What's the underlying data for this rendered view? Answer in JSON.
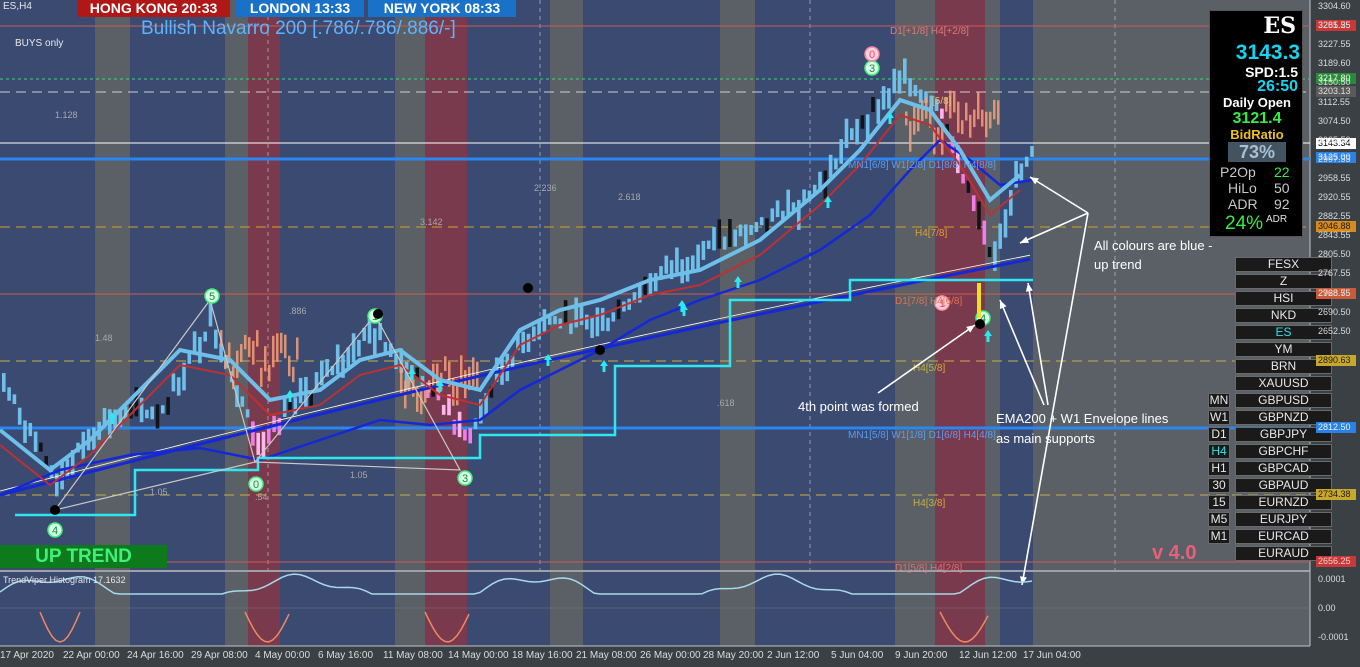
{
  "header": {
    "symbol": "ES,H4",
    "indicator_title": "Bullish Navarro 200 [.786/.786/.886/-]",
    "mode": "BUYS only"
  },
  "sessions": [
    {
      "label": "HONG KONG  20:33",
      "color": "#b01818"
    },
    {
      "label": "LONDON  13:33",
      "color": "#1a72c8"
    },
    {
      "label": "NEW YORK  08:33",
      "color": "#1a72c8"
    }
  ],
  "panel": {
    "symbol": "ES",
    "price": "3143.3",
    "spread": "SPD:1.5",
    "timer": "26:50",
    "daily_open_label": "Daily Open",
    "daily_open": "3121.4",
    "bid_ratio_label": "BidRatio",
    "bid_ratio": "73%",
    "stats": [
      {
        "k": "P2Op",
        "v": "22",
        "color": "#33ee44"
      },
      {
        "k": "HiLo",
        "v": "50",
        "color": "#c8c8c8"
      },
      {
        "k": "ADR",
        "v": "92",
        "color": "#c8c8c8"
      }
    ],
    "adr_pct": "24%",
    "adr_suffix": "ADR"
  },
  "markets": [
    "FESX",
    "Z",
    "HSI",
    "NKD",
    "ES",
    "YM",
    "BRN",
    "XAUUSD",
    "GBPUSD",
    "GBPNZD",
    "GBPJPY",
    "GBPCHF",
    "GBPCAD",
    "GBPAUD",
    "EURNZD",
    "EURJPY",
    "EURCAD",
    "EURAUD"
  ],
  "active_market": "ES",
  "timeframes": [
    "MN",
    "W1",
    "D1",
    "H4",
    "H1",
    "30",
    "15",
    "M5",
    "M1"
  ],
  "active_timeframe": "H4",
  "price_axis": [
    "3304.60",
    "3265.55",
    "3227.55",
    "3189.60",
    "3150.50",
    "3112.55",
    "3074.50",
    "3035.50",
    "2997.55",
    "2958.55",
    "2920.55",
    "2882.55",
    "2843.55",
    "2805.50",
    "2767.55",
    "2728.55",
    "2690.50",
    "2652.50"
  ],
  "price_boxes": [
    {
      "label": "3281.25",
      "color": "#c83838",
      "text": "#f0d0d0"
    },
    {
      "label": "3217.80",
      "color": "#2a8a3a",
      "text": "#e0ffe0"
    },
    {
      "label": "3203.13",
      "color": "#5a5a5a",
      "text": "#e0e0e0"
    },
    {
      "label": "3143.34",
      "color": "#ffffff",
      "text": "#000000"
    },
    {
      "label": "3125.00",
      "color": "#2a82e8",
      "text": "#e8f4ff"
    },
    {
      "label": "3046.88",
      "color": "#d88a1a",
      "text": "#1a1a1a"
    },
    {
      "label": "2968.75",
      "color": "#c85a3a",
      "text": "#f0e0d0"
    },
    {
      "label": "2890.63",
      "color": "#c8a82a",
      "text": "#1a1a1a"
    },
    {
      "label": "2812.50",
      "color": "#2a82e8",
      "text": "#e8f4ff"
    },
    {
      "label": "2734.38",
      "color": "#c8a82a",
      "text": "#1a1a1a"
    },
    {
      "label": "2656.25",
      "color": "#c83838",
      "text": "#f0d0d0"
    }
  ],
  "time_axis": [
    "17 Apr 2020",
    "22 Apr 00:00",
    "24 Apr 16:00",
    "29 Apr 08:00",
    "4 May 00:00",
    "6 May 16:00",
    "11 May 08:00",
    "14 May 00:00",
    "18 May 16:00",
    "21 May 08:00",
    "26 May 00:00",
    "28 May 20:00",
    "2 Jun 12:00",
    "5 Jun 04:00",
    "9 Jun 20:00",
    "12 Jun 12:00",
    "17 Jun 04:00"
  ],
  "murrey_labels": [
    "D1[+1/8] H4[+2/8]",
    "MN1[6/8] W1[2/8] D1[8/8] H4[8/8]",
    "H4[7/8]",
    "D1[7/8] H4[6/8]",
    "H4[5/8]",
    "MN1[5/8] W1[1/8] D1[6/8] H4[4/8]",
    "H4[3/8]",
    "D1[5/8] H4[2/8]",
    "[5/8]"
  ],
  "fib_labels": [
    "1.128",
    "1.48",
    ".886",
    "2.236",
    "3.142",
    "2.618",
    ".618",
    "1.05",
    "1.05",
    ".54"
  ],
  "wave_points": [
    "4",
    "5",
    "0",
    "1",
    "3",
    "0",
    "3",
    "1",
    "4"
  ],
  "annotations": {
    "trend_note_1": "All colours are blue -",
    "trend_note_2": "up trend",
    "fourth_point": "4th point was formed",
    "support_note_1": "EMA200 + W1 Envelope lines",
    "support_note_2": "as main supports"
  },
  "trend_status": "UP TREND",
  "version": "v 4.0",
  "oscillator": {
    "title": "TrendViper Histogram 17.1632",
    "axis": [
      "0.0001",
      "0.00",
      "-0.0001"
    ]
  }
}
